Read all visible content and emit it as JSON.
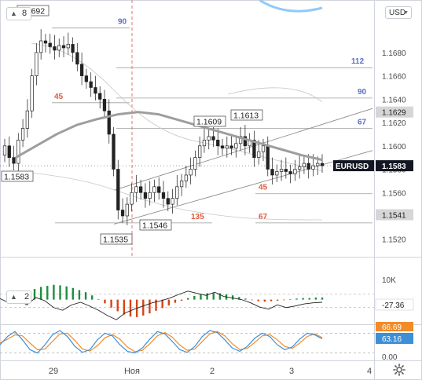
{
  "toolbar": {
    "currency": "USD",
    "main_pane_count": "8",
    "osc_pane_count": "2"
  },
  "colors": {
    "up": "#26a69a",
    "down": "#ef5350",
    "ma": "#9e9e9e",
    "fib_blue": "#5b6fc7",
    "fib_red": "#e05a3c",
    "channel": "#8d8d8d",
    "macd_line": "#222222",
    "stoch_k": "#f28c28",
    "stoch_d": "#3d8fd6"
  },
  "chart_data": [
    {
      "type": "candlestick",
      "symbol": "EURUSD",
      "ylim": [
        1.1505,
        1.1725
      ],
      "y_ticks": [
        "1.1680",
        "1.1660",
        "1.1640",
        "1.1620",
        "1.1600",
        "1.1580",
        "1.1560",
        "1.1520"
      ],
      "x_ticks": [
        "29",
        "Ноя",
        "2",
        "3",
        "4"
      ],
      "candles_close": [
        1.16,
        1.159,
        1.1585,
        1.1605,
        1.1615,
        1.163,
        1.166,
        1.168,
        1.169,
        1.1688,
        1.1685,
        1.1682,
        1.1686,
        1.1684,
        1.1687,
        1.168,
        1.167,
        1.166,
        1.1655,
        1.165,
        1.1645,
        1.164,
        1.163,
        1.161,
        1.158,
        1.1545,
        1.154,
        1.155,
        1.156,
        1.1565,
        1.156,
        1.1555,
        1.156,
        1.1565,
        1.156,
        1.1555,
        1.155,
        1.1555,
        1.1565,
        1.157,
        1.1575,
        1.158,
        1.159,
        1.16,
        1.1605,
        1.1608,
        1.1605,
        1.16,
        1.1598,
        1.16,
        1.1598,
        1.1602,
        1.1608,
        1.16,
        1.1605,
        1.159,
        1.1595,
        1.16,
        1.158,
        1.1575,
        1.1578,
        1.158,
        1.1578,
        1.1576,
        1.158,
        1.1582,
        1.1585,
        1.158,
        1.1583,
        1.1585,
        1.1583
      ],
      "price_labels": [
        "1.1692",
        "1.1583",
        "1.1535",
        "1.1546",
        "1.1609",
        "1.1613"
      ],
      "current_price": "1.1583",
      "current_symbol_tag": "EURUSD",
      "right_tags": [
        "1.1629",
        "1.1541"
      ],
      "fib_levels": [
        {
          "label": "90",
          "price": 1.1701,
          "color": "blue"
        },
        {
          "label": "45",
          "price": 1.1637,
          "color": "red"
        },
        {
          "label": "112",
          "price": 1.1667,
          "color": "blue"
        },
        {
          "label": "90",
          "price": 1.1641,
          "color": "blue"
        },
        {
          "label": "67",
          "price": 1.1615,
          "color": "blue"
        },
        {
          "label": "135",
          "price": 1.1534,
          "color": "red"
        },
        {
          "label": "45",
          "price": 1.1559,
          "color": "red"
        },
        {
          "label": "67",
          "price": 1.1534,
          "color": "red"
        }
      ],
      "ma_values": [
        1.159,
        1.16,
        1.161,
        1.1618,
        1.1623,
        1.1627,
        1.1629,
        1.1627,
        1.1622,
        1.1617,
        1.1612,
        1.1607,
        1.1602,
        1.1597,
        1.1592,
        1.1588
      ]
    },
    {
      "type": "macd",
      "ylim": [
        -0.0045,
        0.0035
      ],
      "current_value": "-27.36",
      "axis_label": "10K",
      "histogram": [
        0.002,
        0.0024,
        0.0026,
        0.0028,
        0.0027,
        0.0025,
        0.0022,
        0.0018,
        0.0014,
        0.0008,
        0.0001,
        -0.0007,
        -0.0015,
        -0.0022,
        -0.0028,
        -0.0032,
        -0.0033,
        -0.003,
        -0.0026,
        -0.0021,
        -0.0016,
        -0.0011,
        -0.0006,
        -0.0002,
        0.0003,
        0.0007,
        0.001,
        0.0012,
        0.0013,
        0.0012,
        0.001,
        0.0008,
        0.0005,
        0.0002,
        -0.0001,
        -0.0003,
        -0.0004,
        -0.0003,
        -0.0002,
        -0.0001,
        0.0001,
        0.0002,
        0.0003,
        0.0003,
        0.0004,
        0.0004
      ]
    },
    {
      "type": "stochastic",
      "ylim": [
        0,
        100
      ],
      "current_k": "63.16",
      "current_d": "66.69",
      "axis_label": "0.00",
      "k": [
        45,
        70,
        85,
        60,
        30,
        20,
        45,
        75,
        88,
        70,
        40,
        22,
        30,
        60,
        80,
        72,
        45,
        25,
        20,
        35,
        62,
        85,
        78,
        55,
        30,
        22,
        40,
        70,
        88,
        82,
        60,
        35,
        25,
        40,
        65,
        80,
        70,
        45,
        30,
        38,
        62,
        80,
        75,
        63
      ],
      "d": [
        50,
        62,
        75,
        72,
        50,
        30,
        32,
        55,
        78,
        80,
        58,
        32,
        26,
        42,
        66,
        76,
        62,
        38,
        24,
        28,
        48,
        72,
        82,
        68,
        44,
        28,
        32,
        55,
        78,
        85,
        72,
        48,
        30,
        34,
        52,
        72,
        76,
        60,
        40,
        34,
        50,
        70,
        78,
        67
      ]
    }
  ]
}
